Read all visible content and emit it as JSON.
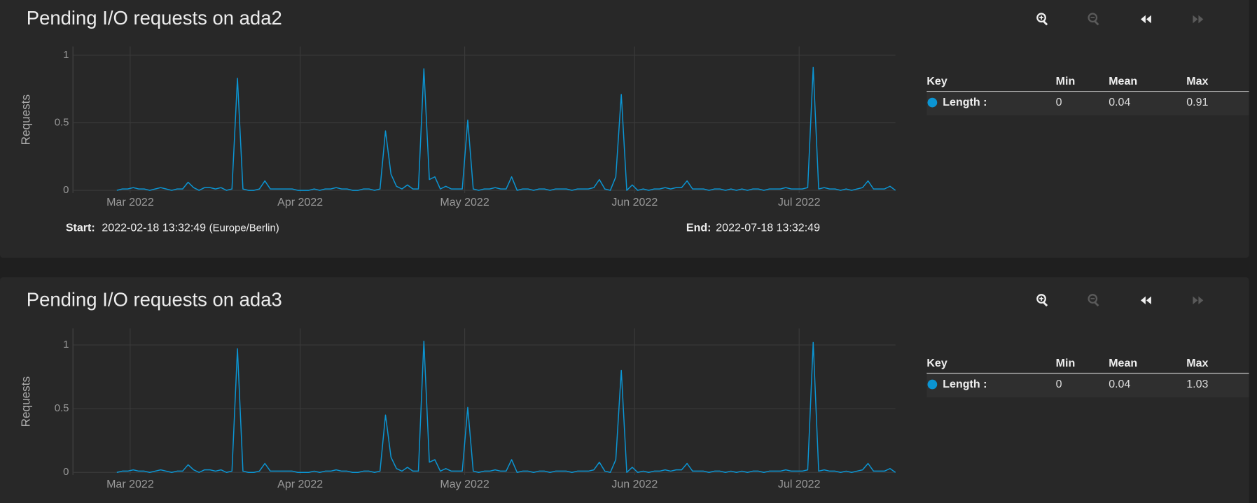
{
  "chart_data": [
    {
      "type": "line",
      "title": "Pending I/O requests on ada2",
      "y_label": "Requests",
      "x": [
        8,
        9,
        10,
        11,
        12,
        13,
        14,
        15,
        16,
        17,
        18,
        19,
        20,
        21,
        22,
        23,
        24,
        25,
        26,
        27,
        28,
        29,
        30,
        31,
        32,
        33,
        34,
        35,
        36,
        37,
        38,
        39,
        40,
        41,
        42,
        43,
        44,
        45,
        46,
        47,
        48,
        49,
        50,
        51,
        52,
        53,
        54,
        55,
        56,
        57,
        58,
        59,
        60,
        61,
        62,
        63,
        64,
        65,
        66,
        67,
        68,
        69,
        70,
        71,
        72,
        73,
        74,
        75,
        76,
        77,
        78,
        79,
        80,
        81,
        82,
        83,
        84,
        85,
        86,
        87,
        88,
        89,
        90,
        91,
        92,
        93,
        94,
        95,
        96,
        97,
        98,
        99,
        100,
        101,
        102,
        103,
        104,
        105,
        106,
        107,
        108,
        109,
        110,
        111,
        112,
        113,
        114,
        115,
        116,
        117,
        118,
        119,
        120,
        121,
        122,
        123,
        124,
        125,
        126,
        127,
        128,
        129,
        130,
        131,
        132,
        133,
        134,
        135,
        136,
        137,
        138,
        139,
        140,
        141,
        142,
        143,
        144,
        145,
        146,
        147,
        148,
        149,
        150
      ],
      "series": [
        {
          "name": "Length :",
          "color": "#0b95d3",
          "values": [
            0,
            0.01,
            0.01,
            0.02,
            0.01,
            0.01,
            0,
            0.01,
            0.02,
            0.01,
            0,
            0.01,
            0.01,
            0.06,
            0.02,
            0,
            0.02,
            0.02,
            0.01,
            0.02,
            0,
            0.01,
            0.83,
            0.01,
            0,
            0,
            0.01,
            0.07,
            0.01,
            0.01,
            0.01,
            0.01,
            0.01,
            0,
            0,
            0,
            0.01,
            0,
            0.01,
            0.01,
            0.02,
            0.01,
            0.01,
            0,
            0,
            0.01,
            0.01,
            0,
            0.01,
            0.44,
            0.12,
            0.03,
            0.01,
            0.04,
            0.01,
            0.01,
            0.9,
            0.08,
            0.1,
            0.01,
            0.03,
            0.01,
            0.01,
            0.01,
            0.52,
            0.01,
            0,
            0.01,
            0.01,
            0.02,
            0.01,
            0.01,
            0.1,
            0,
            0.01,
            0.01,
            0,
            0.01,
            0.01,
            0,
            0.01,
            0.01,
            0.01,
            0,
            0.01,
            0.01,
            0.01,
            0.02,
            0.08,
            0.01,
            0,
            0.1,
            0.71,
            0,
            0.04,
            0,
            0.01,
            0,
            0.01,
            0.01,
            0.02,
            0.01,
            0.02,
            0.02,
            0.07,
            0.01,
            0.01,
            0.01,
            0,
            0.01,
            0.01,
            0,
            0.01,
            0,
            0.01,
            0,
            0.01,
            0.01,
            0,
            0.01,
            0.01,
            0.01,
            0.02,
            0.01,
            0.01,
            0.01,
            0.02,
            0.91,
            0.01,
            0.02,
            0.01,
            0.01,
            0,
            0.01,
            0,
            0.01,
            0.02,
            0.07,
            0.01,
            0.01,
            0.01,
            0.03,
            0
          ]
        }
      ],
      "xlim": [
        0,
        150
      ],
      "ylim": [
        -0.02,
        1.065
      ],
      "yticks": [
        0,
        0.5,
        1
      ],
      "xticks": [
        {
          "value": 10.44,
          "label": "Mar 2022"
        },
        {
          "value": 41.44,
          "label": "Apr 2022"
        },
        {
          "value": 71.44,
          "label": "May 2022"
        },
        {
          "value": 102.44,
          "label": "Jun 2022"
        },
        {
          "value": 132.44,
          "label": "Jul 2022"
        }
      ],
      "grid": true
    },
    {
      "type": "line",
      "title": "Pending I/O requests on ada3",
      "y_label": "Requests",
      "x": [
        8,
        9,
        10,
        11,
        12,
        13,
        14,
        15,
        16,
        17,
        18,
        19,
        20,
        21,
        22,
        23,
        24,
        25,
        26,
        27,
        28,
        29,
        30,
        31,
        32,
        33,
        34,
        35,
        36,
        37,
        38,
        39,
        40,
        41,
        42,
        43,
        44,
        45,
        46,
        47,
        48,
        49,
        50,
        51,
        52,
        53,
        54,
        55,
        56,
        57,
        58,
        59,
        60,
        61,
        62,
        63,
        64,
        65,
        66,
        67,
        68,
        69,
        70,
        71,
        72,
        73,
        74,
        75,
        76,
        77,
        78,
        79,
        80,
        81,
        82,
        83,
        84,
        85,
        86,
        87,
        88,
        89,
        90,
        91,
        92,
        93,
        94,
        95,
        96,
        97,
        98,
        99,
        100,
        101,
        102,
        103,
        104,
        105,
        106,
        107,
        108,
        109,
        110,
        111,
        112,
        113,
        114,
        115,
        116,
        117,
        118,
        119,
        120,
        121,
        122,
        123,
        124,
        125,
        126,
        127,
        128,
        129,
        130,
        131,
        132,
        133,
        134,
        135,
        136,
        137,
        138,
        139,
        140,
        141,
        142,
        143,
        144,
        145,
        146,
        147,
        148,
        149,
        150
      ],
      "series": [
        {
          "name": "Length :",
          "color": "#0b95d3",
          "values": [
            0,
            0.01,
            0.01,
            0.02,
            0.01,
            0.01,
            0,
            0.01,
            0.02,
            0.01,
            0,
            0.01,
            0.01,
            0.06,
            0.02,
            0,
            0.02,
            0.02,
            0.01,
            0.02,
            0,
            0.01,
            0.97,
            0.01,
            0,
            0,
            0.01,
            0.07,
            0.01,
            0.01,
            0.01,
            0.01,
            0.01,
            0,
            0,
            0,
            0.01,
            0,
            0.01,
            0.01,
            0.02,
            0.01,
            0.01,
            0,
            0,
            0.01,
            0.01,
            0,
            0.01,
            0.45,
            0.12,
            0.03,
            0.01,
            0.04,
            0.01,
            0.01,
            1.03,
            0.08,
            0.1,
            0.01,
            0.03,
            0.01,
            0.01,
            0.01,
            0.51,
            0.01,
            0,
            0.01,
            0.01,
            0.02,
            0.01,
            0.01,
            0.1,
            0,
            0.01,
            0.01,
            0,
            0.01,
            0.01,
            0,
            0.01,
            0.01,
            0.01,
            0,
            0.01,
            0.01,
            0.01,
            0.02,
            0.08,
            0.01,
            0,
            0.1,
            0.8,
            0,
            0.04,
            0,
            0.01,
            0,
            0.01,
            0.01,
            0.02,
            0.01,
            0.02,
            0.02,
            0.07,
            0.01,
            0.01,
            0.01,
            0,
            0.01,
            0.01,
            0,
            0.01,
            0,
            0.01,
            0,
            0.01,
            0.01,
            0,
            0.01,
            0.01,
            0.01,
            0.02,
            0.01,
            0.01,
            0.01,
            0.02,
            1.02,
            0.01,
            0.02,
            0.01,
            0.01,
            0,
            0.01,
            0,
            0.01,
            0.02,
            0.07,
            0.01,
            0.01,
            0.01,
            0.03,
            0
          ]
        }
      ],
      "xlim": [
        0,
        150
      ],
      "ylim": [
        -0.02,
        1.13
      ],
      "yticks": [
        0,
        0.5,
        1
      ],
      "xticks": [
        {
          "value": 10.44,
          "label": "Mar 2022"
        },
        {
          "value": 41.44,
          "label": "Apr 2022"
        },
        {
          "value": 71.44,
          "label": "May 2022"
        },
        {
          "value": 102.44,
          "label": "Jun 2022"
        },
        {
          "value": 132.44,
          "label": "Jul 2022"
        }
      ],
      "grid": true
    }
  ],
  "panels": [
    {
      "start_label": "Start:",
      "start": "2022-02-18 13:32:49",
      "timezone": "(Europe/Berlin)",
      "end_label": "End:",
      "end": "2022-07-18 13:32:49",
      "legend": {
        "headers": [
          "Key",
          "Min",
          "Mean",
          "Max"
        ],
        "min": 0,
        "mean": 0.04,
        "max": 0.91
      }
    },
    {
      "legend": {
        "headers": [
          "Key",
          "Min",
          "Mean",
          "Max"
        ],
        "min": 0,
        "mean": 0.04,
        "max": 1.03
      }
    }
  ]
}
